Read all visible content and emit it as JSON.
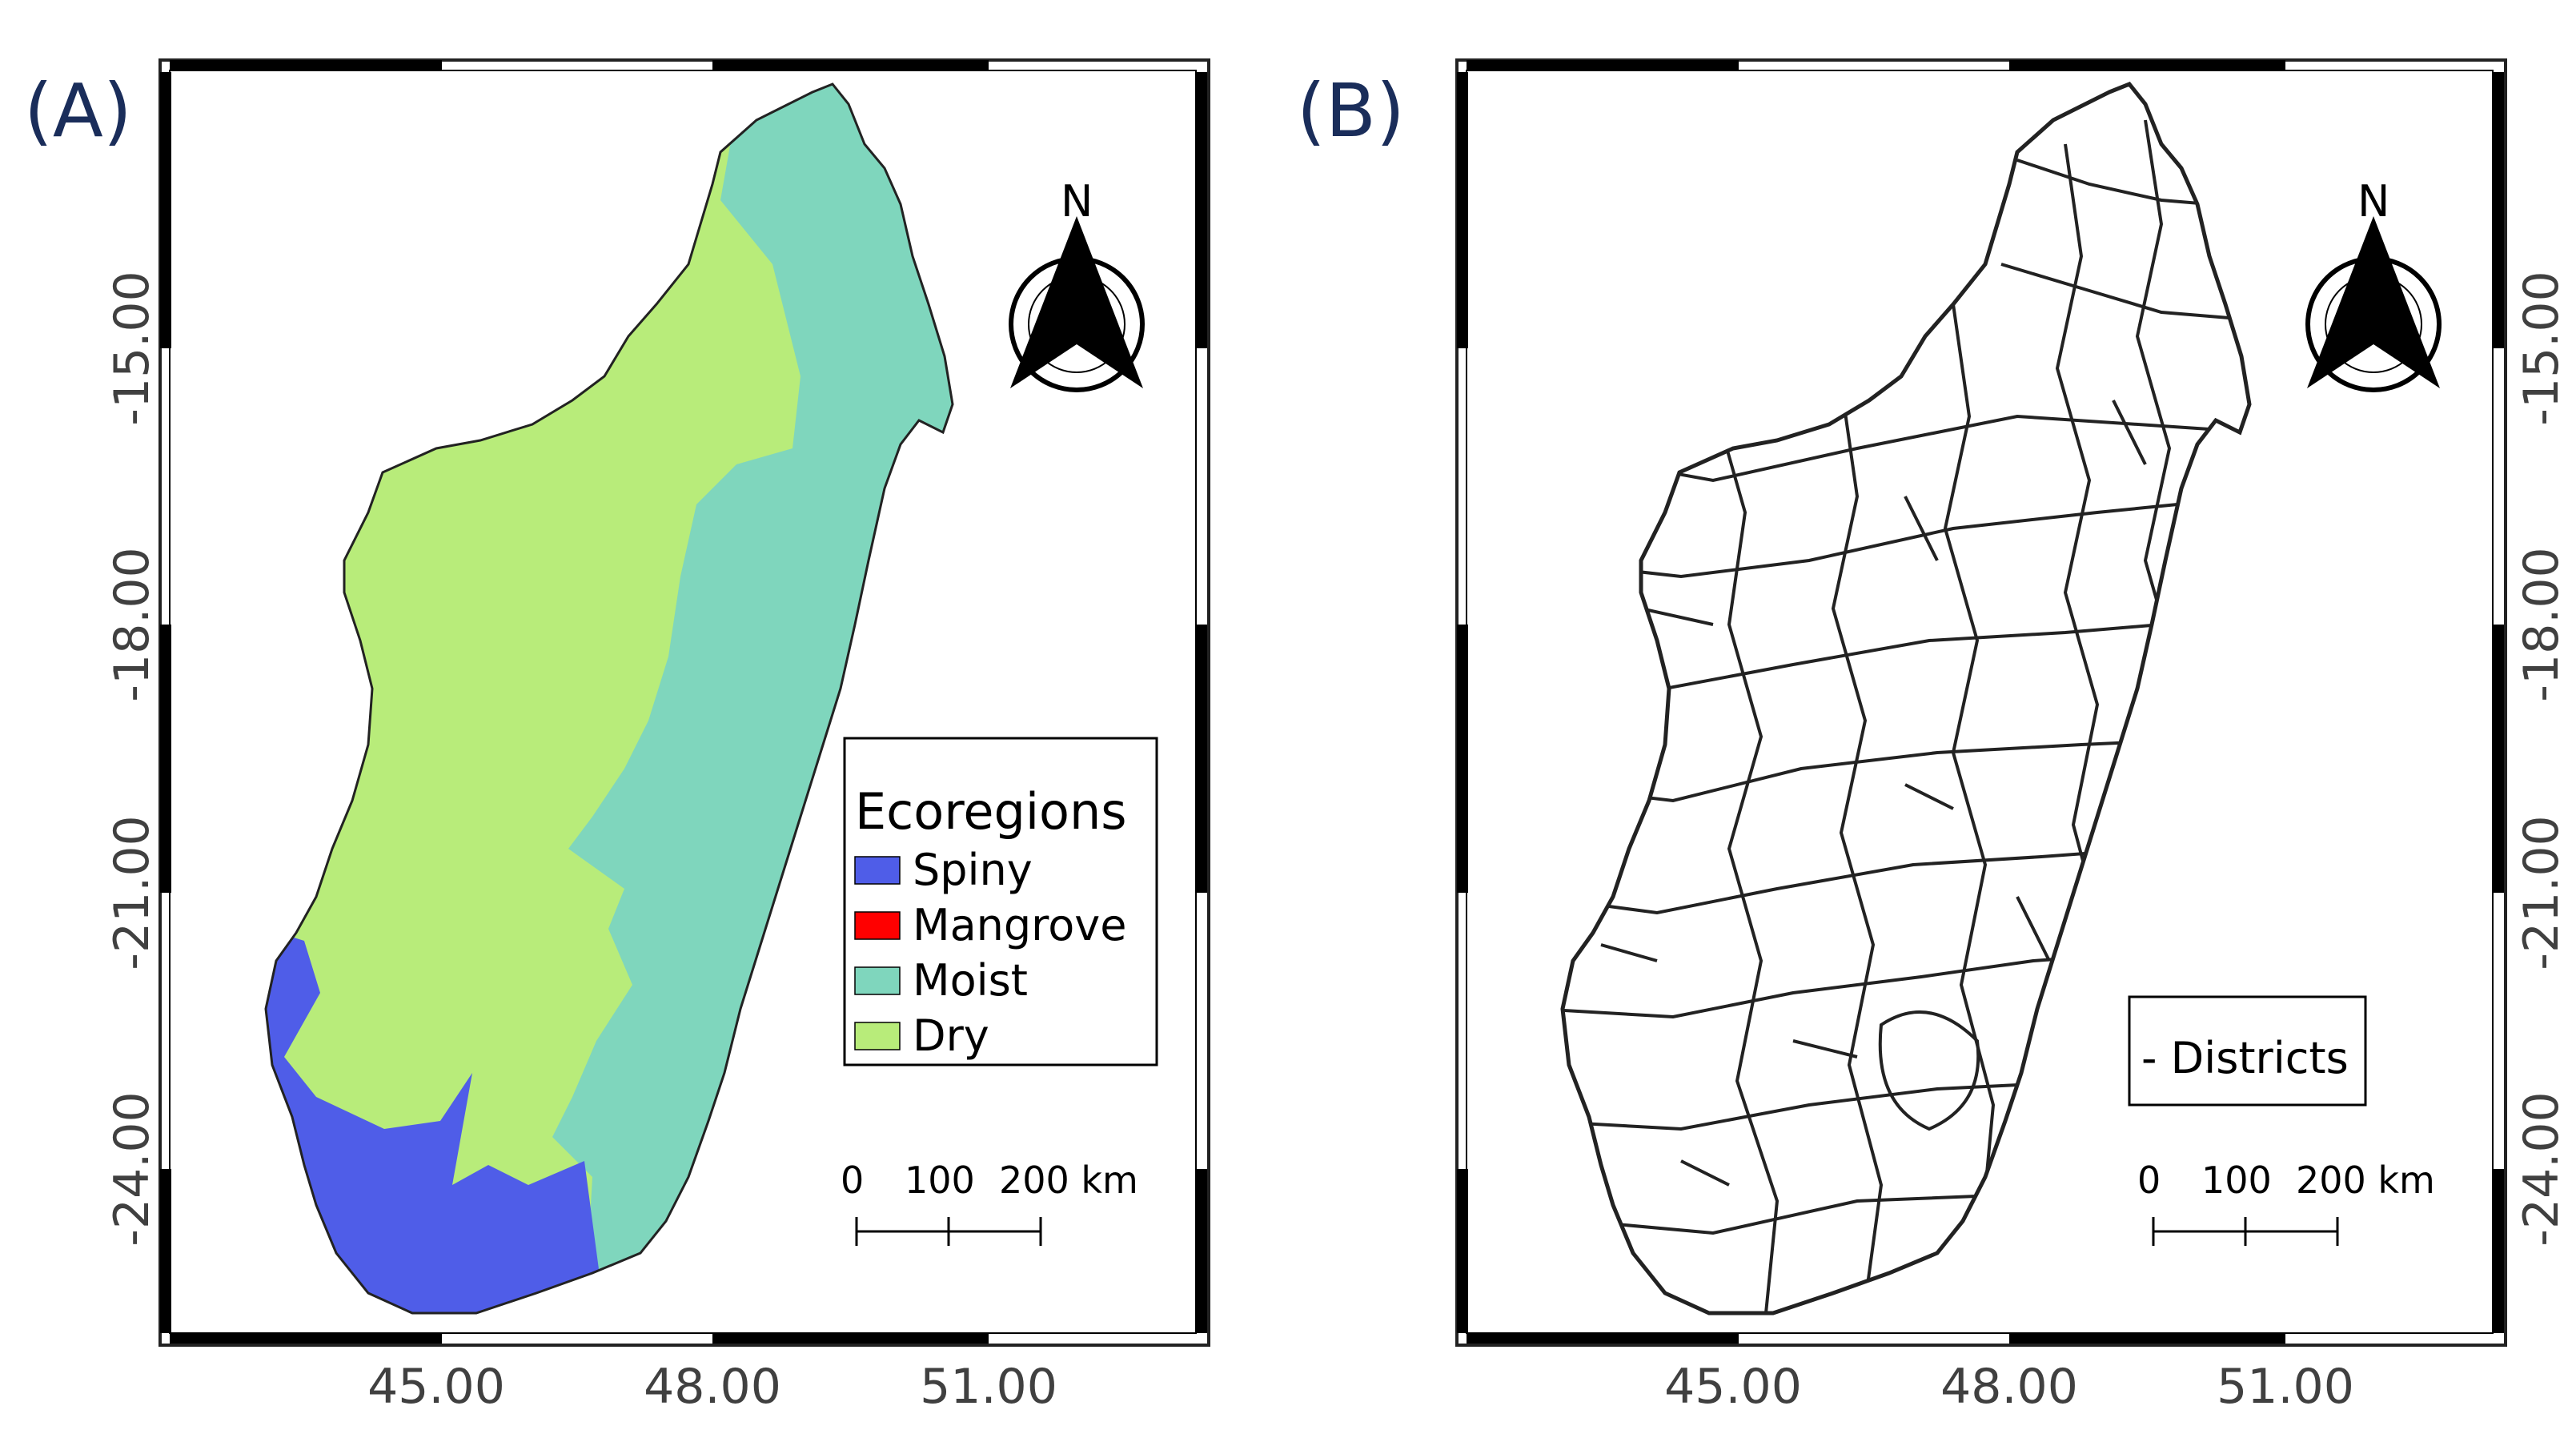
{
  "panels": [
    {
      "id": "A",
      "label": "(A)",
      "legend": {
        "title": "Ecoregions",
        "items": [
          {
            "label": "Spiny",
            "color": "#4f5de8"
          },
          {
            "label": "Mangrove",
            "color": "#ff0000"
          },
          {
            "label": "Moist",
            "color": "#7fd6bd"
          },
          {
            "label": "Dry",
            "color": "#b8ec7a"
          }
        ]
      },
      "x_ticks": [
        "45.00",
        "48.00",
        "51.00"
      ],
      "y_ticks_left": [
        "-15.00",
        "-18.00",
        "-21.00",
        "-24.00"
      ],
      "scale_labels": [
        "0",
        "100",
        "200 km"
      ],
      "north": "N"
    },
    {
      "id": "B",
      "label": "(B)",
      "legend": {
        "title": "",
        "items": [
          {
            "label": "- Districts"
          }
        ]
      },
      "x_ticks": [
        "45.00",
        "48.00",
        "51.00"
      ],
      "y_ticks_right": [
        "-15.00",
        "-18.00",
        "-21.00",
        "-24.00"
      ],
      "scale_labels": [
        "0",
        "100",
        "200 km"
      ],
      "north": "N"
    }
  ],
  "colors": {
    "spiny": "#4f5de8",
    "moist": "#7fd6bd",
    "dry": "#b8ec7a",
    "outline": "#222222",
    "panel_label": "#1a2d5a"
  }
}
